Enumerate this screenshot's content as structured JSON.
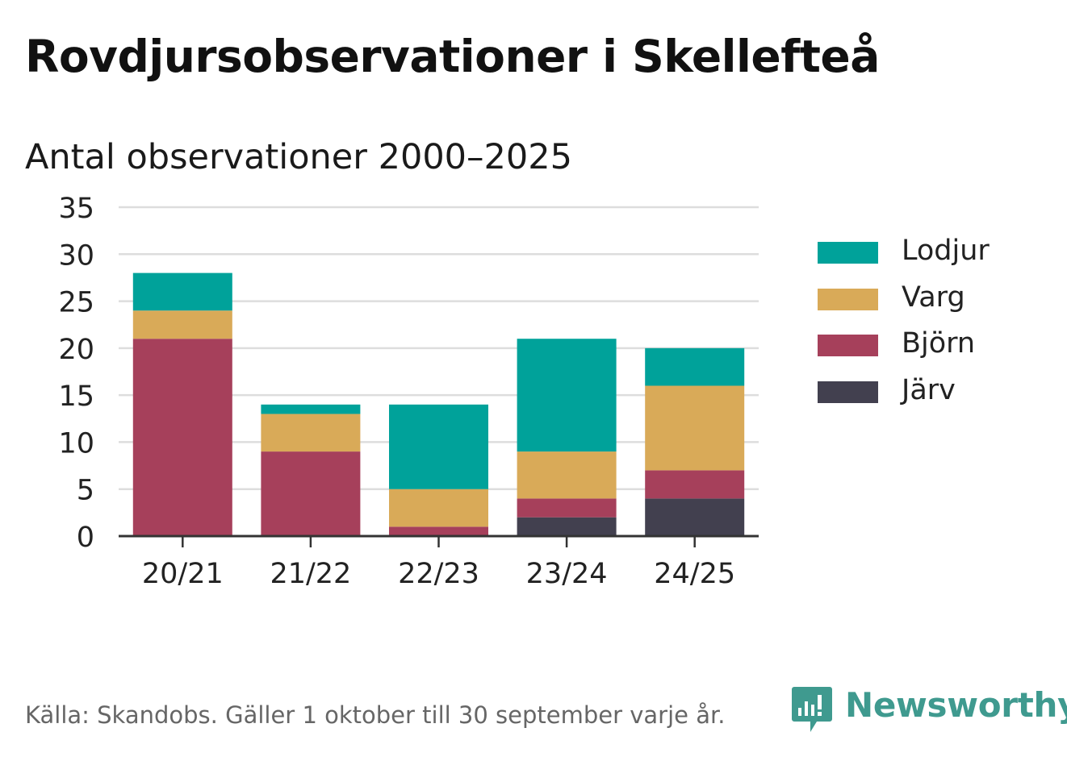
{
  "title": "Rovdjursobservationer i Skellefteå",
  "subtitle": "Antal observationer 2000–2025",
  "source": "Källa: Skandobs. Gäller 1 oktober till 30 september varje år.",
  "brand": {
    "name": "Newsworthy",
    "color": "#3f9a8f"
  },
  "chart_data": {
    "type": "bar",
    "stacked": true,
    "title": "Antal observationer 2000–2025",
    "xlabel": "",
    "ylabel": "",
    "categories": [
      "20/21",
      "21/22",
      "22/23",
      "23/24",
      "24/25"
    ],
    "ylim": [
      0,
      35
    ],
    "yticks": [
      0,
      5,
      10,
      15,
      20,
      25,
      30,
      35
    ],
    "grid": true,
    "legend_position": "right",
    "series": [
      {
        "name": "Järv",
        "color": "#42404f",
        "values": [
          0,
          0,
          0,
          2,
          4
        ]
      },
      {
        "name": "Björn",
        "color": "#a6405b",
        "values": [
          21,
          9,
          1,
          2,
          3
        ]
      },
      {
        "name": "Varg",
        "color": "#d9aa58",
        "values": [
          3,
          4,
          4,
          5,
          9
        ]
      },
      {
        "name": "Lodjur",
        "color": "#00a29a",
        "values": [
          4,
          1,
          9,
          12,
          4
        ]
      }
    ],
    "legend_order": [
      "Lodjur",
      "Varg",
      "Björn",
      "Järv"
    ]
  }
}
